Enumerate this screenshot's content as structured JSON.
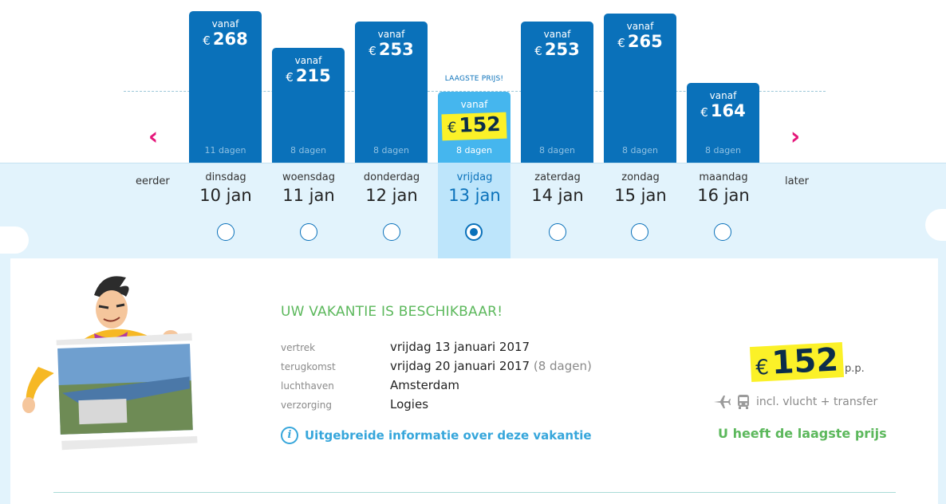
{
  "chart": {
    "lowest_label": "LAAGSTE PRIJS!",
    "prev_arrow": "‹",
    "next_arrow": "›",
    "bars": [
      {
        "vanaf": "vanaf",
        "currency": "€",
        "price": 268,
        "days": "11 dagen",
        "selected": false
      },
      {
        "vanaf": "vanaf",
        "currency": "€",
        "price": 215,
        "days": "8 dagen",
        "selected": false
      },
      {
        "vanaf": "vanaf",
        "currency": "€",
        "price": 253,
        "days": "8 dagen",
        "selected": false
      },
      {
        "vanaf": "vanaf",
        "currency": "€",
        "price": 152,
        "days": "8 dagen",
        "selected": true
      },
      {
        "vanaf": "vanaf",
        "currency": "€",
        "price": 253,
        "days": "8 dagen",
        "selected": false
      },
      {
        "vanaf": "vanaf",
        "currency": "€",
        "price": 265,
        "days": "8 dagen",
        "selected": false
      },
      {
        "vanaf": "vanaf",
        "currency": "€",
        "price": 164,
        "days": "8 dagen",
        "selected": false
      }
    ]
  },
  "dates": {
    "earlier": "eerder",
    "later": "later",
    "days": [
      {
        "weekday": "dinsdag",
        "date": "10 jan",
        "selected": false
      },
      {
        "weekday": "woensdag",
        "date": "11 jan",
        "selected": false
      },
      {
        "weekday": "donderdag",
        "date": "12 jan",
        "selected": false
      },
      {
        "weekday": "vrijdag",
        "date": "13 jan",
        "selected": true
      },
      {
        "weekday": "zaterdag",
        "date": "14 jan",
        "selected": false
      },
      {
        "weekday": "zondag",
        "date": "15 jan",
        "selected": false
      },
      {
        "weekday": "maandag",
        "date": "16 jan",
        "selected": false
      }
    ]
  },
  "details": {
    "title": "UW VAKANTIE IS BESCHIKBAAR!",
    "rows": [
      {
        "label": "vertrek",
        "value": "vrijdag 13 januari 2017",
        "extra": ""
      },
      {
        "label": "terugkomst",
        "value": "vrijdag 20 januari 2017",
        "extra": "(8 dagen)"
      },
      {
        "label": "luchthaven",
        "value": "Amsterdam",
        "extra": ""
      },
      {
        "label": "verzorging",
        "value": "Logies",
        "extra": ""
      }
    ],
    "info_icon": "i",
    "info_link": "Uitgebreide informatie over deze vakantie"
  },
  "summary": {
    "currency": "€",
    "price": "152",
    "per_person": "p.p.",
    "includes": "incl. vlucht + transfer",
    "lowest_price_text": "U heeft de laagste prijs"
  },
  "colors": {
    "bar": "#0a71ba",
    "bar_selected": "#45b6ee",
    "highlight": "#fbf128",
    "accent_green": "#5cb85c",
    "arrow": "#e5167a"
  }
}
